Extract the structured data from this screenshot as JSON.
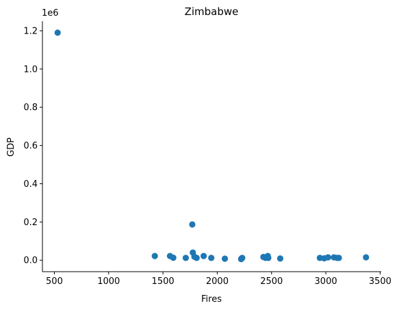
{
  "chart_data": {
    "type": "scatter",
    "title": "Zimbabwe",
    "xlabel": "Fires",
    "ylabel": "GDP",
    "y_scale_label": "1e6",
    "xlim": [
      390,
      3510
    ],
    "ylim": [
      -0.06,
      1.25
    ],
    "x_ticks": [
      500,
      1000,
      1500,
      2000,
      2500,
      3000,
      3500
    ],
    "y_ticks": [
      0.0,
      0.2,
      0.4,
      0.6,
      0.8,
      1.0,
      1.2
    ],
    "y_tick_labels": [
      "0.0",
      "0.2",
      "0.4",
      "0.6",
      "0.8",
      "1.0",
      "1.2"
    ],
    "x_tick_labels": [
      "500",
      "1000",
      "1500",
      "2000",
      "2500",
      "3000",
      "3500"
    ],
    "marker_color": "#1f77b4",
    "grid": false,
    "points": [
      {
        "x": 530,
        "y": 1.19
      },
      {
        "x": 1425,
        "y": 0.022
      },
      {
        "x": 1565,
        "y": 0.022
      },
      {
        "x": 1595,
        "y": 0.013
      },
      {
        "x": 1710,
        "y": 0.012
      },
      {
        "x": 1770,
        "y": 0.187
      },
      {
        "x": 1775,
        "y": 0.04
      },
      {
        "x": 1790,
        "y": 0.018
      },
      {
        "x": 1810,
        "y": 0.012
      },
      {
        "x": 1875,
        "y": 0.022
      },
      {
        "x": 1945,
        "y": 0.012
      },
      {
        "x": 2070,
        "y": 0.008
      },
      {
        "x": 2220,
        "y": 0.006
      },
      {
        "x": 2225,
        "y": 0.01
      },
      {
        "x": 2230,
        "y": 0.012
      },
      {
        "x": 2425,
        "y": 0.017
      },
      {
        "x": 2445,
        "y": 0.012
      },
      {
        "x": 2465,
        "y": 0.022
      },
      {
        "x": 2470,
        "y": 0.012
      },
      {
        "x": 2580,
        "y": 0.009
      },
      {
        "x": 2945,
        "y": 0.012
      },
      {
        "x": 2985,
        "y": 0.01
      },
      {
        "x": 3020,
        "y": 0.015
      },
      {
        "x": 3075,
        "y": 0.015
      },
      {
        "x": 3105,
        "y": 0.012
      },
      {
        "x": 3120,
        "y": 0.012
      },
      {
        "x": 3370,
        "y": 0.015
      }
    ]
  }
}
